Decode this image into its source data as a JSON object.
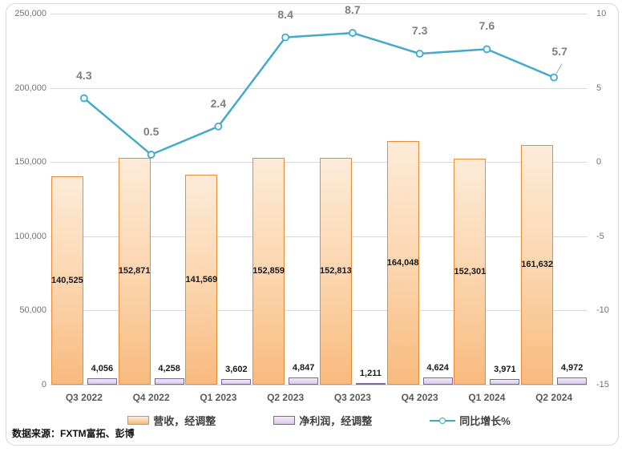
{
  "chart_data": {
    "type": "combo",
    "categories": [
      "Q3 2022",
      "Q4 2022",
      "Q1 2023",
      "Q2 2023",
      "Q3 2023",
      "Q4 2023",
      "Q1 2024",
      "Q2 2024"
    ],
    "series": [
      {
        "name": "营收，经调整",
        "type": "bar",
        "axis": "left",
        "values": [
          140525,
          152871,
          141569,
          152859,
          152813,
          164048,
          152301,
          161632
        ],
        "labels": [
          "140,525",
          "152,871",
          "141,569",
          "152,859",
          "152,813",
          "164,048",
          "152,301",
          "161,632"
        ]
      },
      {
        "name": "净利润，经调整",
        "type": "bar",
        "axis": "left",
        "values": [
          4056,
          4258,
          3602,
          4847,
          1211,
          4624,
          3971,
          4972
        ],
        "labels": [
          "4,056",
          "4,258",
          "3,602",
          "4,847",
          "1,211",
          "4,624",
          "3,971",
          "4,972"
        ]
      },
      {
        "name": "同比增长%",
        "type": "line",
        "axis": "right",
        "values": [
          4.3,
          0.5,
          2.4,
          8.4,
          8.7,
          7.3,
          7.6,
          5.7
        ],
        "labels": [
          "4.3",
          "0.5",
          "2.4",
          "8.4",
          "8.7",
          "7.3",
          "7.6",
          "5.7"
        ]
      }
    ],
    "left_axis": {
      "min": 0,
      "max": 250000,
      "tick_labels_top_to_bottom": [
        "250,000",
        "200,000",
        "150,000",
        "100,000",
        "50,000",
        "0"
      ]
    },
    "right_axis": {
      "min": -15,
      "max": 10,
      "tick_labels_top_to_bottom": [
        "10",
        "5",
        "0",
        "-5",
        "-10",
        "-15"
      ]
    },
    "grid": true,
    "legend_position": "bottom"
  },
  "colors": {
    "revenue_border": "#e78b3d",
    "revenue_fill_top": "#fdebd8",
    "revenue_fill_bottom": "#f8ba7e",
    "profit_border": "#8064a2",
    "profit_fill_top": "#f0eaf8",
    "profit_fill_bottom": "#d9c9ec",
    "line": "#45a9c9",
    "gridline": "#d9d9d9",
    "axis_text": "#737373",
    "category_text": "#595959",
    "line_label_text": "#7f7f7f",
    "bar_label_text": "#1a1a1a"
  },
  "source_note": "数据来源：FXTM富拓、彭博"
}
